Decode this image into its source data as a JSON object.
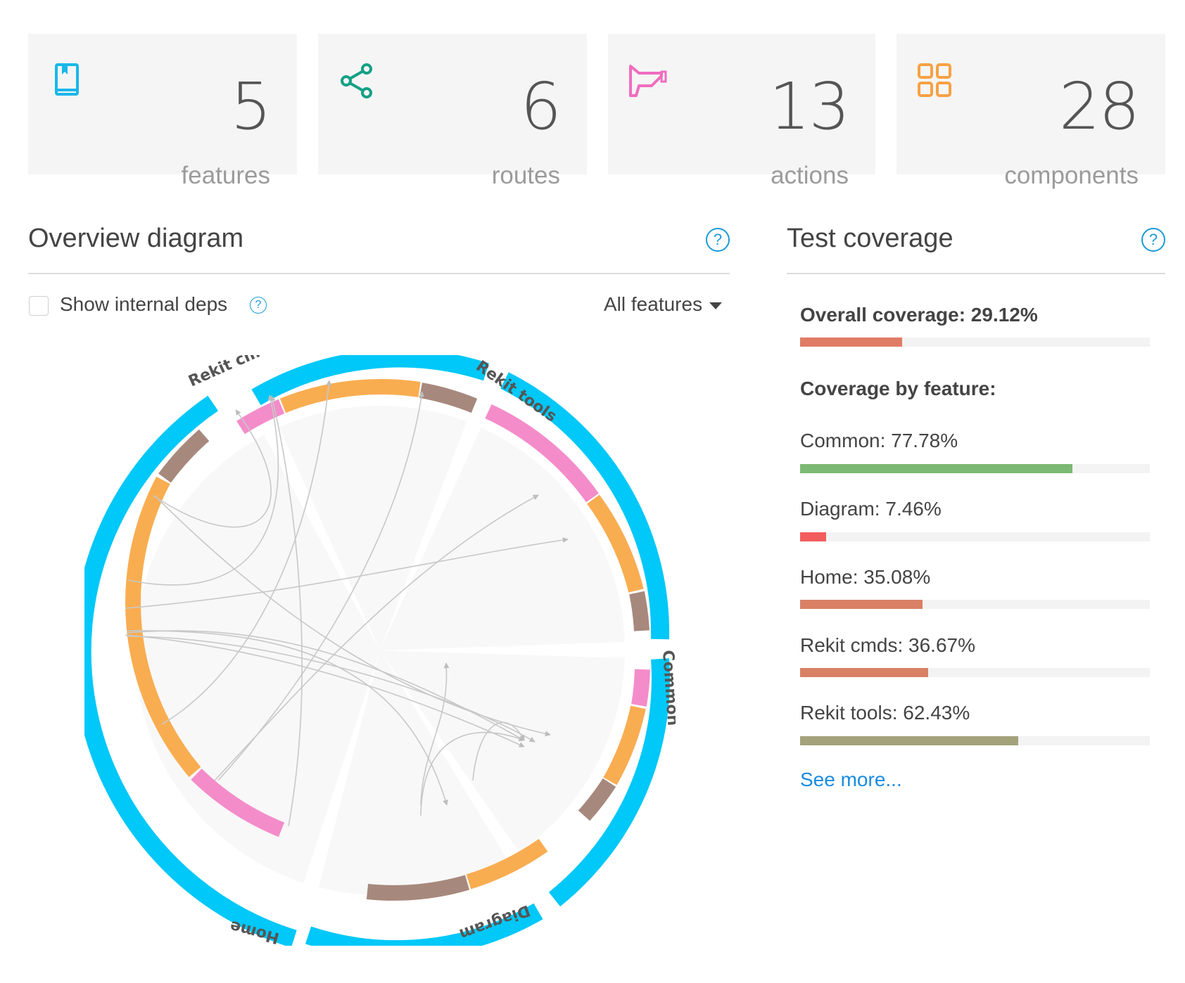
{
  "stats": [
    {
      "icon": "book-icon",
      "value": "5",
      "label": "features",
      "color": "#1ab7ea"
    },
    {
      "icon": "share-icon",
      "value": "6",
      "label": "routes",
      "color": "#14a085"
    },
    {
      "icon": "megaphone-icon",
      "value": "13",
      "label": "actions",
      "color": "#f06cbf"
    },
    {
      "icon": "grid-icon",
      "value": "28",
      "label": "components",
      "color": "#f7a144"
    }
  ],
  "overview": {
    "title": "Overview diagram",
    "show_internal_label": "Show internal deps",
    "filter_label": "All features",
    "features": [
      "Rekit cmds",
      "Rekit tools",
      "Common",
      "Diagram",
      "Home"
    ]
  },
  "coverage": {
    "title": "Test coverage",
    "overall_label": "Overall coverage: 29.12%",
    "overall_value": 29.12,
    "overall_color": "#e07b65",
    "by_feature_label": "Coverage by feature:",
    "items": [
      {
        "label": "Common: 77.78%",
        "value": 77.78,
        "color": "#7cb974"
      },
      {
        "label": "Diagram: 7.46%",
        "value": 7.46,
        "color": "#f35c5c"
      },
      {
        "label": "Home: 35.08%",
        "value": 35.08,
        "color": "#d98065"
      },
      {
        "label": "Rekit cmds: 36.67%",
        "value": 36.67,
        "color": "#d98065"
      },
      {
        "label": "Rekit tools: 62.43%",
        "value": 62.43,
        "color": "#a3a27a"
      }
    ],
    "see_more": "See more..."
  }
}
